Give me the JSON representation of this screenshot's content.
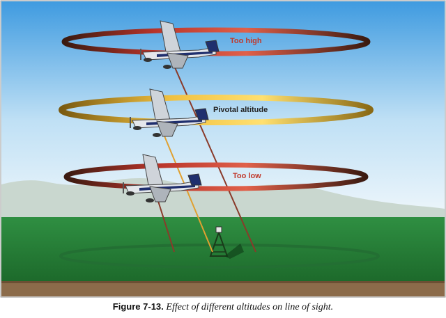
{
  "caption": {
    "figure_number": "Figure 7-13.",
    "text": "Effect of different altitudes on line of sight."
  },
  "rings": [
    {
      "label": "Too high",
      "label_color": "#c0392b",
      "ring_color": "#a52a2a"
    },
    {
      "label": "Pivotal altitude",
      "label_color": "#222222",
      "ring_color": "#e0a020"
    },
    {
      "label": "Too low",
      "label_color": "#c0392b",
      "ring_color": "#a52a2a"
    }
  ],
  "colors": {
    "sky_top": "#4aa3df",
    "sky_bottom": "#e8f3fb",
    "ground": "#2e8b3e",
    "ground_dark": "#1f6b2c",
    "soil": "#8b6b4a",
    "plane_body": "#dfe3e8",
    "plane_stripe": "#1f2f6e"
  }
}
